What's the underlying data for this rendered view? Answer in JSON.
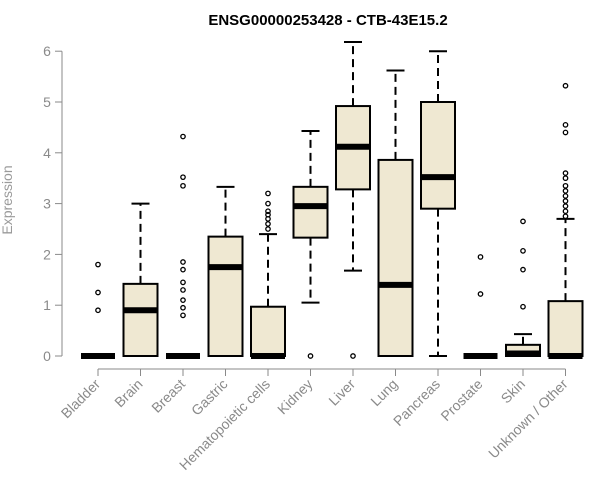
{
  "chart_data": {
    "type": "box",
    "title": "ENSG00000253428 - CTB-43E15.2",
    "xlabel": "",
    "ylabel": "Expression",
    "ylim": [
      0,
      6.2
    ],
    "yticks": [
      0,
      1,
      2,
      3,
      4,
      5,
      6
    ],
    "grid": false,
    "legend": "none",
    "box_fill": "#efe8d2",
    "categories": [
      "Bladder",
      "Brain",
      "Breast",
      "Gastric",
      "Hematopoietic cells",
      "Kidney",
      "Liver",
      "Lung",
      "Pancreas",
      "Prostate",
      "Skin",
      "Unknown / Other"
    ],
    "boxes": [
      {
        "min": 0,
        "q1": 0,
        "median": 0,
        "q3": 0,
        "max": 0,
        "outliers": [
          0.9,
          1.25,
          1.8
        ]
      },
      {
        "min": 0,
        "q1": 0,
        "median": 0.9,
        "q3": 1.42,
        "max": 3.0,
        "outliers": []
      },
      {
        "min": 0,
        "q1": 0,
        "median": 0,
        "q3": 0,
        "max": 0,
        "outliers": [
          0.8,
          0.95,
          1.1,
          1.3,
          1.45,
          1.7,
          1.85,
          3.35,
          3.52,
          4.32
        ]
      },
      {
        "min": 0,
        "q1": 0,
        "median": 1.75,
        "q3": 2.35,
        "max": 3.33,
        "outliers": []
      },
      {
        "min": 0,
        "q1": 0,
        "median": 0,
        "q3": 0.97,
        "max": 2.4,
        "outliers": [
          2.5,
          2.6,
          2.7,
          2.78,
          2.85,
          3.0,
          3.2
        ]
      },
      {
        "min": 1.05,
        "q1": 2.33,
        "median": 2.95,
        "q3": 3.33,
        "max": 4.43,
        "outliers": [
          0
        ]
      },
      {
        "min": 1.68,
        "q1": 3.28,
        "median": 4.12,
        "q3": 4.92,
        "max": 6.18,
        "outliers": [
          0
        ]
      },
      {
        "min": 0,
        "q1": 0,
        "median": 1.4,
        "q3": 3.86,
        "max": 5.62,
        "outliers": []
      },
      {
        "min": 0,
        "q1": 2.9,
        "median": 3.52,
        "q3": 5.0,
        "max": 6.0,
        "outliers": []
      },
      {
        "min": 0,
        "q1": 0,
        "median": 0,
        "q3": 0,
        "max": 0,
        "outliers": [
          1.22,
          1.95
        ]
      },
      {
        "min": 0,
        "q1": 0,
        "median": 0.05,
        "q3": 0.22,
        "max": 0.43,
        "outliers": [
          0.97,
          1.7,
          2.07,
          2.65
        ]
      },
      {
        "min": 0,
        "q1": 0,
        "median": 0,
        "q3": 1.08,
        "max": 2.7,
        "outliers": [
          2.75,
          2.85,
          2.95,
          3.05,
          3.15,
          3.25,
          3.35,
          3.5,
          3.6,
          4.4,
          4.55,
          5.32
        ]
      }
    ]
  }
}
